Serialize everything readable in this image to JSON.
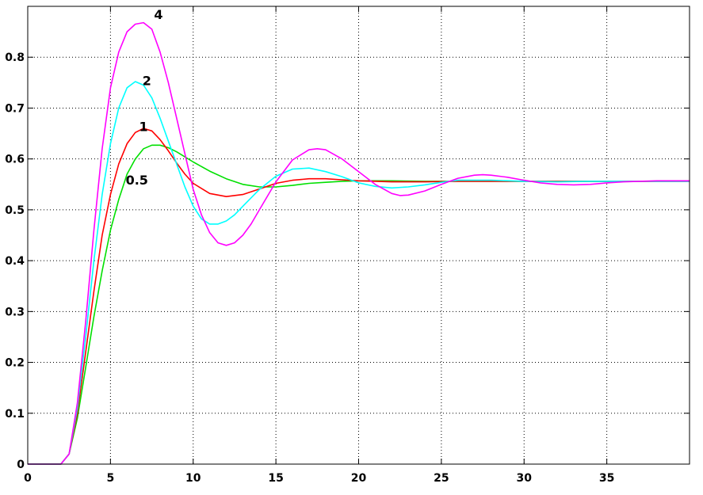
{
  "chart_data": {
    "type": "line",
    "title": "",
    "xlabel": "",
    "ylabel": "",
    "xlim": [
      0,
      40
    ],
    "ylim": [
      0,
      0.9
    ],
    "xticks": [
      0,
      5,
      10,
      15,
      20,
      25,
      30,
      35
    ],
    "yticks": [
      0,
      0.1,
      0.2,
      0.3,
      0.4,
      0.5,
      0.6,
      0.7,
      0.8
    ],
    "grid": true,
    "legend": "none",
    "series": [
      {
        "name": "0.5",
        "color": "#00e000",
        "x": [
          0,
          2,
          2.5,
          3,
          3.5,
          4,
          4.5,
          5,
          5.5,
          6,
          6.5,
          7,
          7.5,
          8,
          8.5,
          9,
          9.5,
          10,
          11,
          12,
          13,
          14,
          15,
          16,
          17,
          18,
          19,
          20,
          22,
          24,
          26,
          28,
          30,
          32,
          34,
          36,
          38,
          40
        ],
        "y": [
          0,
          0,
          0.02,
          0.09,
          0.19,
          0.29,
          0.38,
          0.46,
          0.52,
          0.57,
          0.6,
          0.62,
          0.627,
          0.627,
          0.622,
          0.614,
          0.604,
          0.594,
          0.576,
          0.561,
          0.55,
          0.545,
          0.545,
          0.548,
          0.552,
          0.554,
          0.556,
          0.557,
          0.557,
          0.556,
          0.556,
          0.556,
          0.556,
          0.556,
          0.556,
          0.556,
          0.556,
          0.556
        ]
      },
      {
        "name": "1",
        "color": "#ff0000",
        "x": [
          0,
          2,
          2.5,
          3,
          3.5,
          4,
          4.5,
          5,
          5.5,
          6,
          6.5,
          7,
          7.5,
          8,
          8.5,
          9,
          9.5,
          10,
          11,
          12,
          13,
          14,
          15,
          16,
          17,
          18,
          19,
          20,
          22,
          24,
          26,
          28,
          30,
          32,
          34,
          36,
          38,
          40
        ],
        "y": [
          0,
          0,
          0.02,
          0.1,
          0.22,
          0.34,
          0.45,
          0.53,
          0.59,
          0.63,
          0.652,
          0.66,
          0.655,
          0.638,
          0.616,
          0.592,
          0.57,
          0.552,
          0.532,
          0.526,
          0.53,
          0.541,
          0.552,
          0.558,
          0.561,
          0.561,
          0.559,
          0.557,
          0.555,
          0.555,
          0.556,
          0.556,
          0.556,
          0.556,
          0.556,
          0.556,
          0.556,
          0.556
        ]
      },
      {
        "name": "2",
        "color": "#00ffff",
        "x": [
          0,
          2,
          2.5,
          3,
          3.5,
          4,
          4.5,
          5,
          5.5,
          6,
          6.5,
          7,
          7.5,
          8,
          8.5,
          9,
          9.5,
          10,
          10.5,
          11,
          11.5,
          12,
          12.5,
          13,
          14,
          15,
          16,
          17,
          18,
          19,
          20,
          21,
          22,
          23,
          24,
          25,
          26,
          28,
          30,
          32,
          34,
          36,
          38,
          40
        ],
        "y": [
          0,
          0,
          0.02,
          0.11,
          0.25,
          0.4,
          0.53,
          0.63,
          0.7,
          0.74,
          0.752,
          0.745,
          0.72,
          0.68,
          0.635,
          0.59,
          0.545,
          0.507,
          0.482,
          0.472,
          0.472,
          0.478,
          0.49,
          0.507,
          0.54,
          0.566,
          0.58,
          0.582,
          0.575,
          0.565,
          0.553,
          0.546,
          0.543,
          0.545,
          0.549,
          0.554,
          0.558,
          0.558,
          0.556,
          0.555,
          0.556,
          0.556,
          0.556,
          0.556
        ]
      },
      {
        "name": "4",
        "color": "#ff00ff",
        "x": [
          0,
          2,
          2.5,
          3,
          3.5,
          4,
          4.5,
          5,
          5.5,
          6,
          6.5,
          7,
          7.5,
          8,
          8.5,
          9,
          9.5,
          10,
          10.5,
          11,
          11.5,
          12,
          12.5,
          13,
          13.5,
          14,
          15,
          16,
          17,
          17.5,
          18,
          19,
          20,
          21,
          22,
          22.5,
          23,
          24,
          25,
          26,
          27,
          27.5,
          28,
          29,
          30,
          31,
          32,
          33,
          34,
          35,
          36,
          38,
          40
        ],
        "y": [
          0,
          0,
          0.02,
          0.12,
          0.28,
          0.46,
          0.62,
          0.74,
          0.81,
          0.85,
          0.865,
          0.868,
          0.855,
          0.81,
          0.75,
          0.68,
          0.61,
          0.54,
          0.49,
          0.455,
          0.435,
          0.43,
          0.435,
          0.45,
          0.472,
          0.5,
          0.555,
          0.598,
          0.618,
          0.62,
          0.618,
          0.6,
          0.575,
          0.55,
          0.532,
          0.528,
          0.529,
          0.537,
          0.55,
          0.562,
          0.568,
          0.569,
          0.568,
          0.564,
          0.558,
          0.553,
          0.55,
          0.549,
          0.55,
          0.553,
          0.555,
          0.557,
          0.557
        ]
      }
    ],
    "annotations": [
      {
        "text": "4",
        "x": 7.9,
        "y": 0.875
      },
      {
        "text": "2",
        "x": 7.2,
        "y": 0.745
      },
      {
        "text": "1",
        "x": 7.0,
        "y": 0.655
      },
      {
        "text": "0.5",
        "x": 6.6,
        "y": 0.55
      }
    ]
  }
}
